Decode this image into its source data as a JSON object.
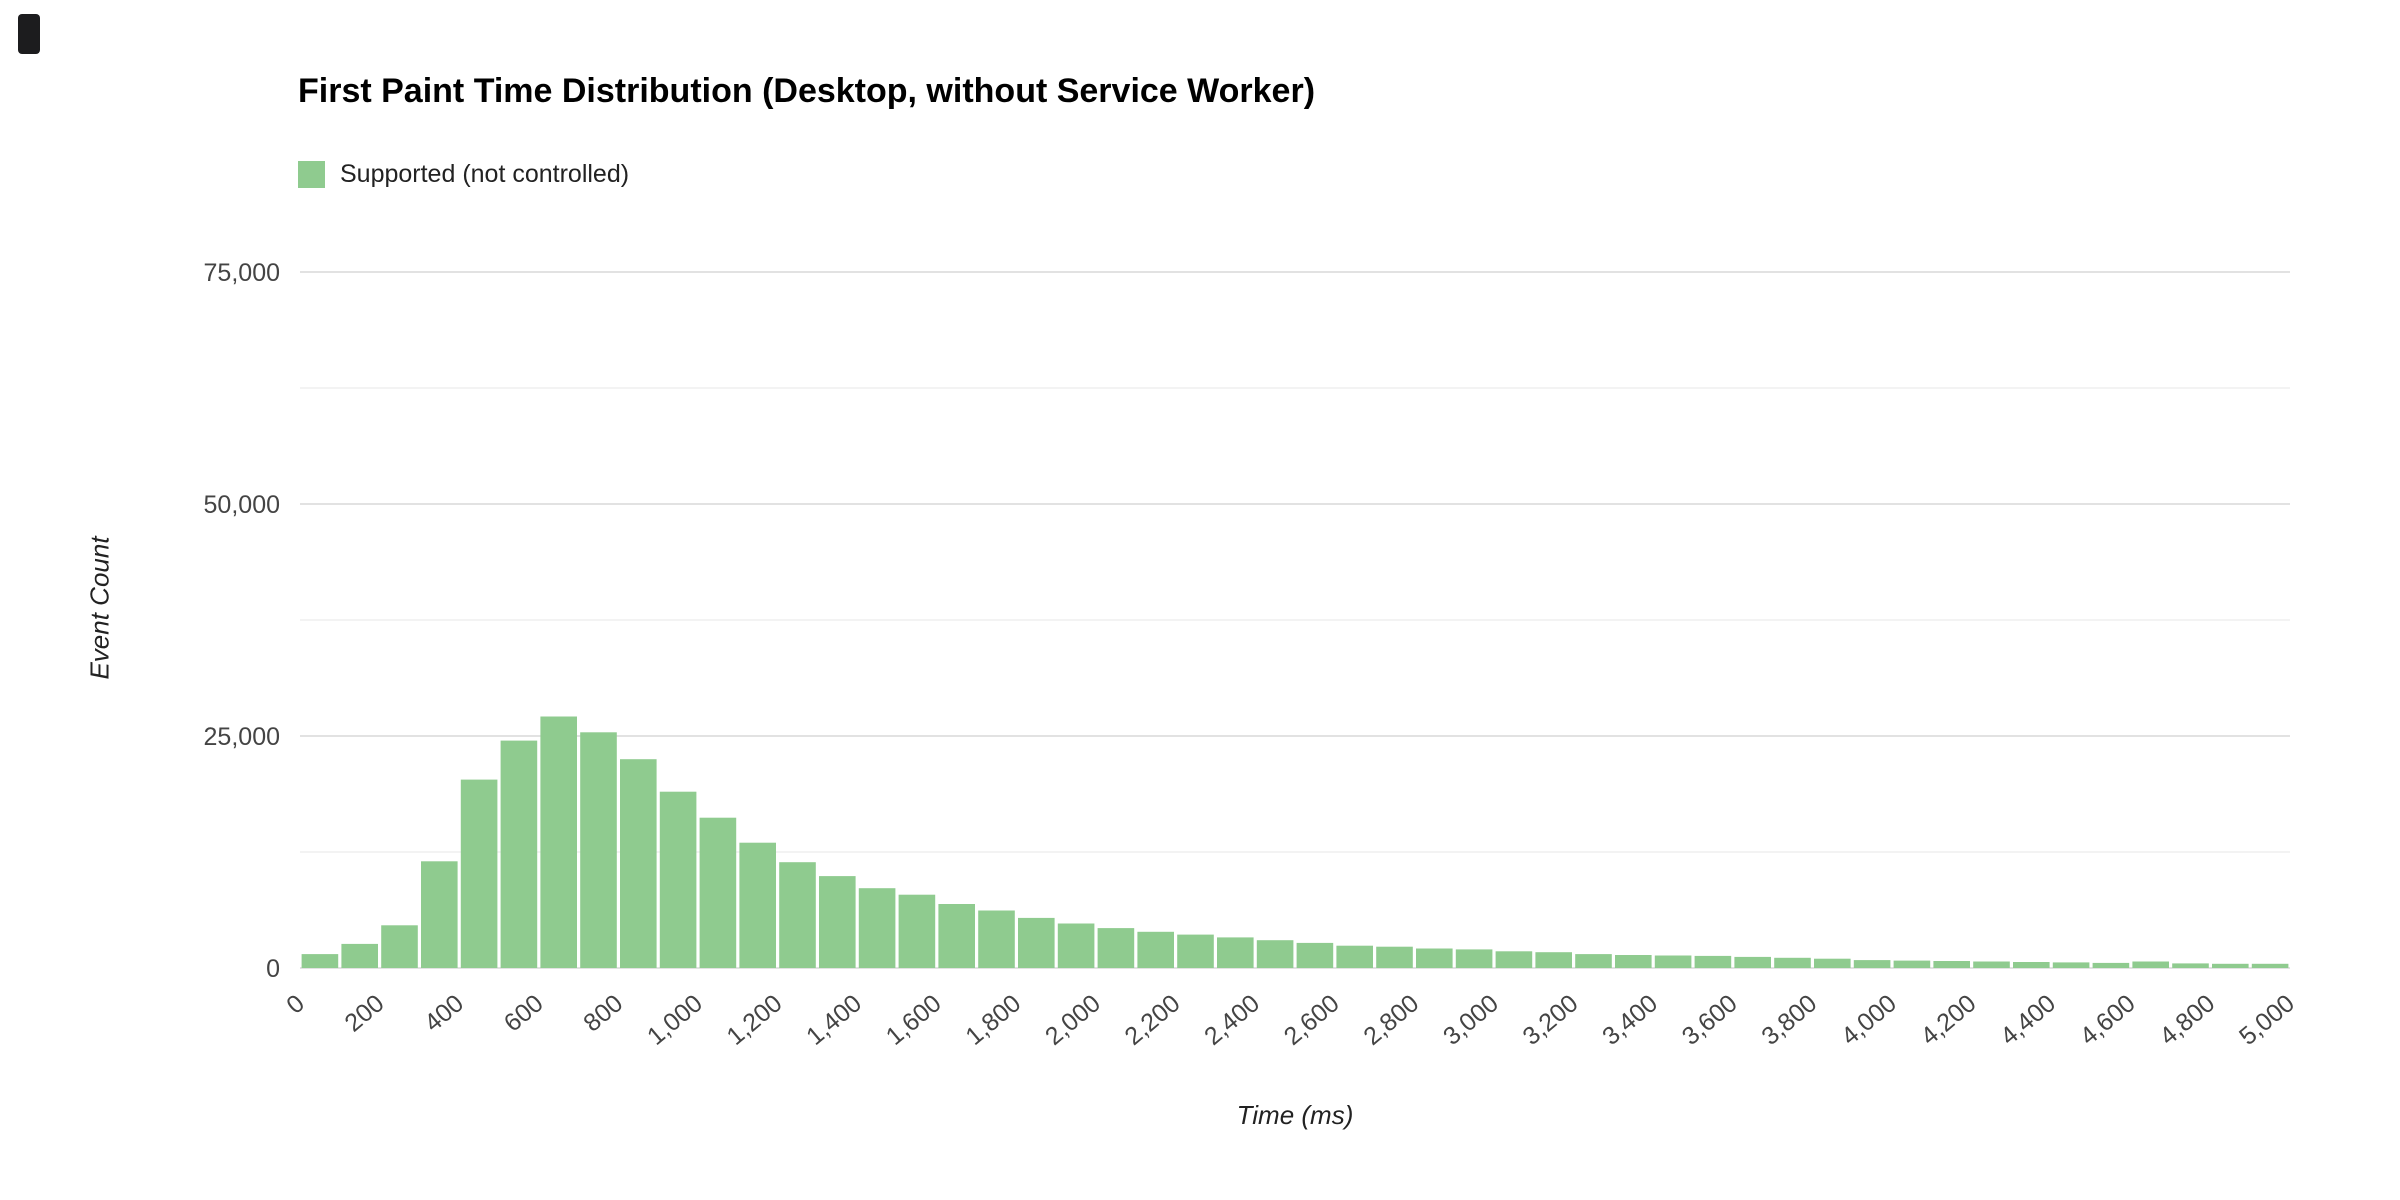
{
  "page": {
    "background": "#ffffff"
  },
  "chart": {
    "title": "First Paint Time Distribution (Desktop, without Service Worker)",
    "legend": {
      "label": "Supported (not controlled)",
      "swatch_color": "#8fcb8f"
    },
    "x_axis_title": "Time (ms)",
    "y_axis_title": "Event Count"
  },
  "chart_data": {
    "type": "bar",
    "title": "First Paint Time Distribution (Desktop, without Service Worker)",
    "xlabel": "Time (ms)",
    "ylabel": "Event Count",
    "legend_position": "top-left",
    "grid": true,
    "xlim": [
      0,
      5000
    ],
    "ylim": [
      0,
      80000
    ],
    "y_tick_values": [
      0,
      25000,
      50000,
      75000
    ],
    "y_tick_labels": [
      "0",
      "25,000",
      "50,000",
      "75,000"
    ],
    "y_minor_ticks": [
      12500,
      37500,
      62500
    ],
    "x_tick_values": [
      0,
      200,
      400,
      600,
      800,
      1000,
      1200,
      1400,
      1600,
      1800,
      2000,
      2200,
      2400,
      2600,
      2800,
      3000,
      3200,
      3400,
      3600,
      3800,
      4000,
      4200,
      4400,
      4600,
      4800,
      5000
    ],
    "x_tick_labels": [
      "0",
      "200",
      "400",
      "600",
      "800",
      "1,000",
      "1,200",
      "1,400",
      "1,600",
      "1,800",
      "2,000",
      "2,200",
      "2,400",
      "2,600",
      "2,800",
      "3,000",
      "3,200",
      "3,400",
      "3,600",
      "3,800",
      "4,000",
      "4,200",
      "4,400",
      "4,600",
      "4,800",
      "5,000"
    ],
    "series": [
      {
        "name": "Supported (not controlled)",
        "color": "#8fcb8f",
        "bin_width_ms": 100,
        "bin_start_ms": 0,
        "values": [
          1500,
          2600,
          4600,
          11500,
          20300,
          24500,
          27100,
          25400,
          22500,
          19000,
          16200,
          13500,
          11400,
          9900,
          8600,
          7900,
          6900,
          6200,
          5400,
          4800,
          4300,
          3900,
          3600,
          3300,
          3000,
          2700,
          2400,
          2300,
          2100,
          2000,
          1800,
          1700,
          1500,
          1400,
          1350,
          1300,
          1200,
          1100,
          1000,
          850,
          800,
          750,
          700,
          650,
          600,
          550,
          700,
          500,
          450,
          450
        ]
      }
    ]
  }
}
